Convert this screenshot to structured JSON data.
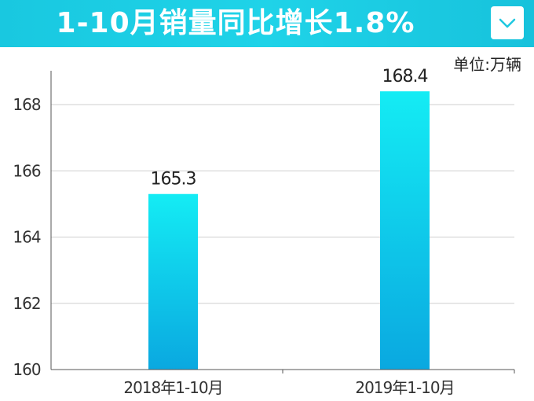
{
  "header": {
    "title": "1-10月销量同比增长1.8%",
    "dropdown_icon": "chevron-down-icon"
  },
  "colors": {
    "banner": "#1fd3e8",
    "bar_top": "#14ecf4",
    "bar_bottom": "#0aa8e0",
    "grid": "#cfcfcf"
  },
  "unit_label": "单位:万辆",
  "chart_data": {
    "type": "bar",
    "categories": [
      "2018年1-10月",
      "2019年1-10月"
    ],
    "values": [
      165.3,
      168.4
    ],
    "value_labels": [
      "165.3",
      "168.4"
    ],
    "title": "1-10月销量同比增长1.8%",
    "xlabel": "",
    "ylabel": "",
    "unit": "单位:万辆",
    "ylim": [
      160,
      169
    ],
    "yticks": [
      160,
      162,
      164,
      166,
      168
    ],
    "ytick_labels": [
      "160",
      "162",
      "164",
      "166",
      "168"
    ],
    "grid": true,
    "legend": "none"
  }
}
